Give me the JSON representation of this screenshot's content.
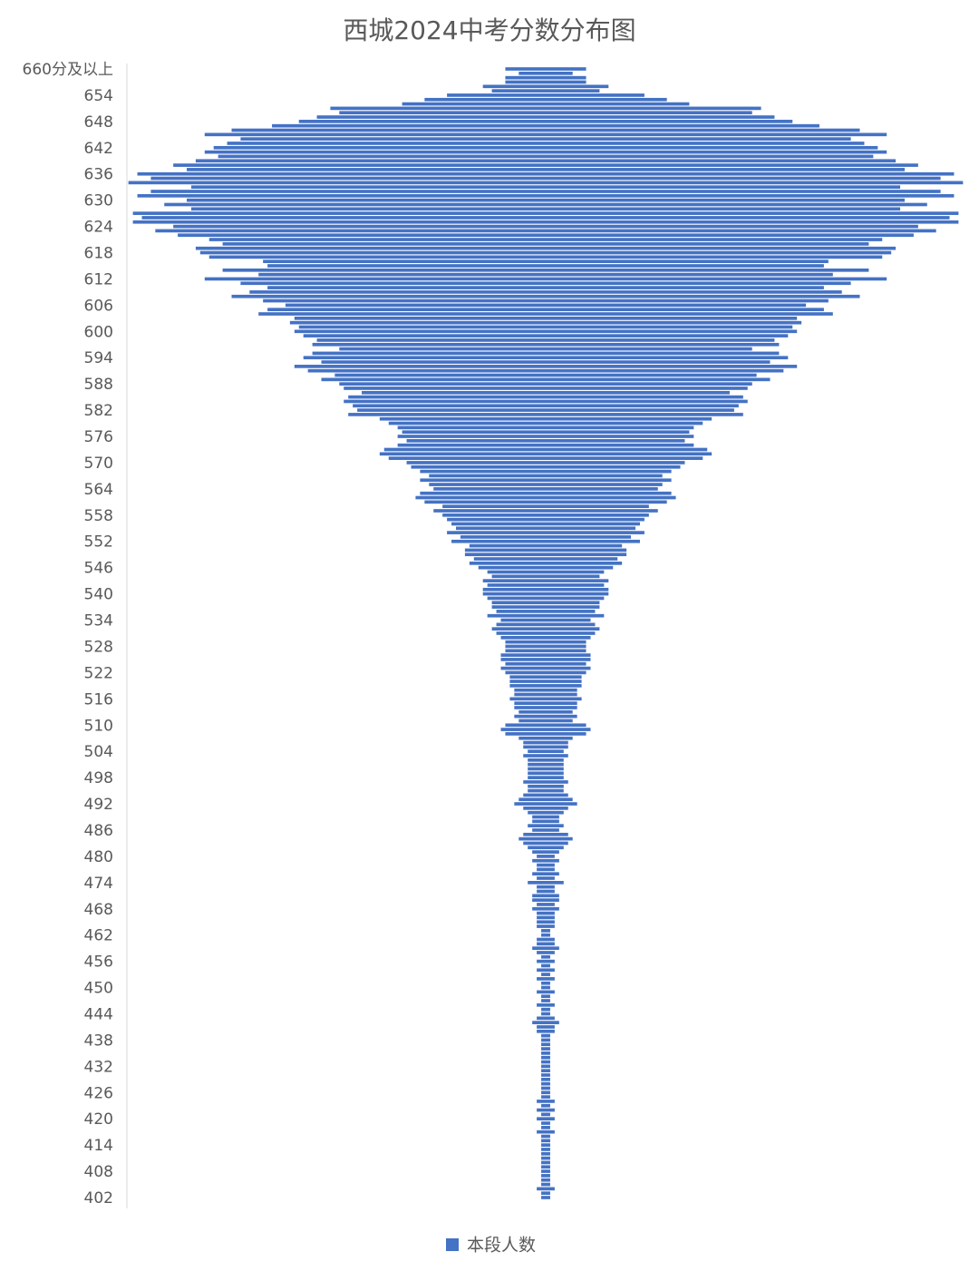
{
  "chart_data": {
    "type": "funnel",
    "title": "西城2024中考分数分布图",
    "categories": [
      "660分及以上",
      null,
      null,
      null,
      null,
      null,
      "654",
      null,
      null,
      null,
      null,
      null,
      "648",
      null,
      null,
      null,
      null,
      null,
      "642",
      null,
      null,
      null,
      null,
      null,
      "636",
      null,
      null,
      null,
      null,
      null,
      "630",
      null,
      null,
      null,
      null,
      null,
      "624",
      null,
      null,
      null,
      null,
      null,
      "618",
      null,
      null,
      null,
      null,
      null,
      "612",
      null,
      null,
      null,
      null,
      null,
      "606",
      null,
      null,
      null,
      null,
      null,
      "600",
      null,
      null,
      null,
      null,
      null,
      "594",
      null,
      null,
      null,
      null,
      null,
      "588",
      null,
      null,
      null,
      null,
      null,
      "582",
      null,
      null,
      null,
      null,
      null,
      "576",
      null,
      null,
      null,
      null,
      null,
      "570",
      null,
      null,
      null,
      null,
      null,
      "564",
      null,
      null,
      null,
      null,
      null,
      "558",
      null,
      null,
      null,
      null,
      null,
      "552",
      null,
      null,
      null,
      null,
      null,
      "546",
      null,
      null,
      null,
      null,
      null,
      "540",
      null,
      null,
      null,
      null,
      null,
      "534",
      null,
      null,
      null,
      null,
      null,
      "528",
      null,
      null,
      null,
      null,
      null,
      "522",
      null,
      null,
      null,
      null,
      null,
      "516",
      null,
      null,
      null,
      null,
      null,
      "510",
      null,
      null,
      null,
      null,
      null,
      "504",
      null,
      null,
      null,
      null,
      null,
      "498",
      null,
      null,
      null,
      null,
      null,
      "492",
      null,
      null,
      null,
      null,
      null,
      "486",
      null,
      null,
      null,
      null,
      null,
      "480",
      null,
      null,
      null,
      null,
      null,
      "474",
      null,
      null,
      null,
      null,
      null,
      "468",
      null,
      null,
      null,
      null,
      null,
      "462",
      null,
      null,
      null,
      null,
      null,
      "456",
      null,
      null,
      null,
      null,
      null,
      "450",
      null,
      null,
      null,
      null,
      null,
      "444",
      null,
      null,
      null,
      null,
      null,
      "438",
      null,
      null,
      null,
      null,
      null,
      "432",
      null,
      null,
      null,
      null,
      null,
      "426",
      null,
      null,
      null,
      null,
      null,
      "420",
      null,
      null,
      null,
      null,
      null,
      "414",
      null,
      null,
      null,
      null,
      null,
      "408",
      null,
      null,
      null,
      null,
      null,
      "402"
    ],
    "series": [
      {
        "name": "本段人数",
        "color": "#4472c4",
        "values": [
          9,
          6,
          9,
          9,
          14,
          12,
          22,
          27,
          32,
          48,
          46,
          51,
          55,
          61,
          70,
          76,
          68,
          71,
          74,
          76,
          73,
          78,
          83,
          80,
          91,
          88,
          93,
          79,
          88,
          91,
          80,
          85,
          79,
          92,
          90,
          92,
          83,
          87,
          82,
          75,
          72,
          78,
          77,
          75,
          63,
          62,
          72,
          64,
          76,
          68,
          62,
          66,
          70,
          63,
          58,
          62,
          64,
          56,
          57,
          55,
          56,
          54,
          51,
          52,
          46,
          52,
          54,
          50,
          56,
          53,
          47,
          50,
          46,
          45,
          41,
          44,
          45,
          43,
          42,
          44,
          37,
          35,
          33,
          32,
          33,
          31,
          33,
          36,
          37,
          35,
          31,
          30,
          28,
          26,
          28,
          26,
          25,
          28,
          29,
          27,
          23,
          25,
          23,
          22,
          21,
          20,
          22,
          19,
          21,
          17,
          18,
          18,
          16,
          17,
          15,
          13,
          12,
          14,
          13,
          14,
          14,
          13,
          12,
          12,
          11,
          13,
          10,
          11,
          12,
          11,
          10,
          9,
          9,
          9,
          10,
          10,
          9,
          10,
          9,
          8,
          8,
          8,
          7,
          7,
          8,
          7,
          7,
          6,
          7,
          6,
          9,
          10,
          9,
          6,
          5,
          5,
          4,
          5,
          4,
          4,
          4,
          4,
          4,
          5,
          4,
          4,
          5,
          6,
          7,
          5,
          4,
          3,
          3,
          4,
          3,
          5,
          6,
          5,
          4,
          3,
          2,
          3,
          2,
          2,
          3,
          2,
          4,
          2,
          2,
          3,
          3,
          2,
          3,
          2,
          2,
          2,
          2,
          1,
          1,
          2,
          2,
          3,
          2,
          1,
          2,
          1,
          2,
          1,
          2,
          1,
          1,
          2,
          1,
          1,
          2,
          1,
          1,
          2,
          3,
          2,
          2,
          1,
          1,
          1,
          1,
          1,
          1,
          1,
          1,
          1,
          1,
          1,
          1,
          1,
          1,
          1,
          2,
          1,
          2,
          1,
          2,
          1,
          1,
          2,
          1,
          1,
          1,
          1,
          1,
          1,
          1,
          1,
          1,
          1,
          1,
          1,
          2,
          1,
          1
        ]
      }
    ]
  }
}
